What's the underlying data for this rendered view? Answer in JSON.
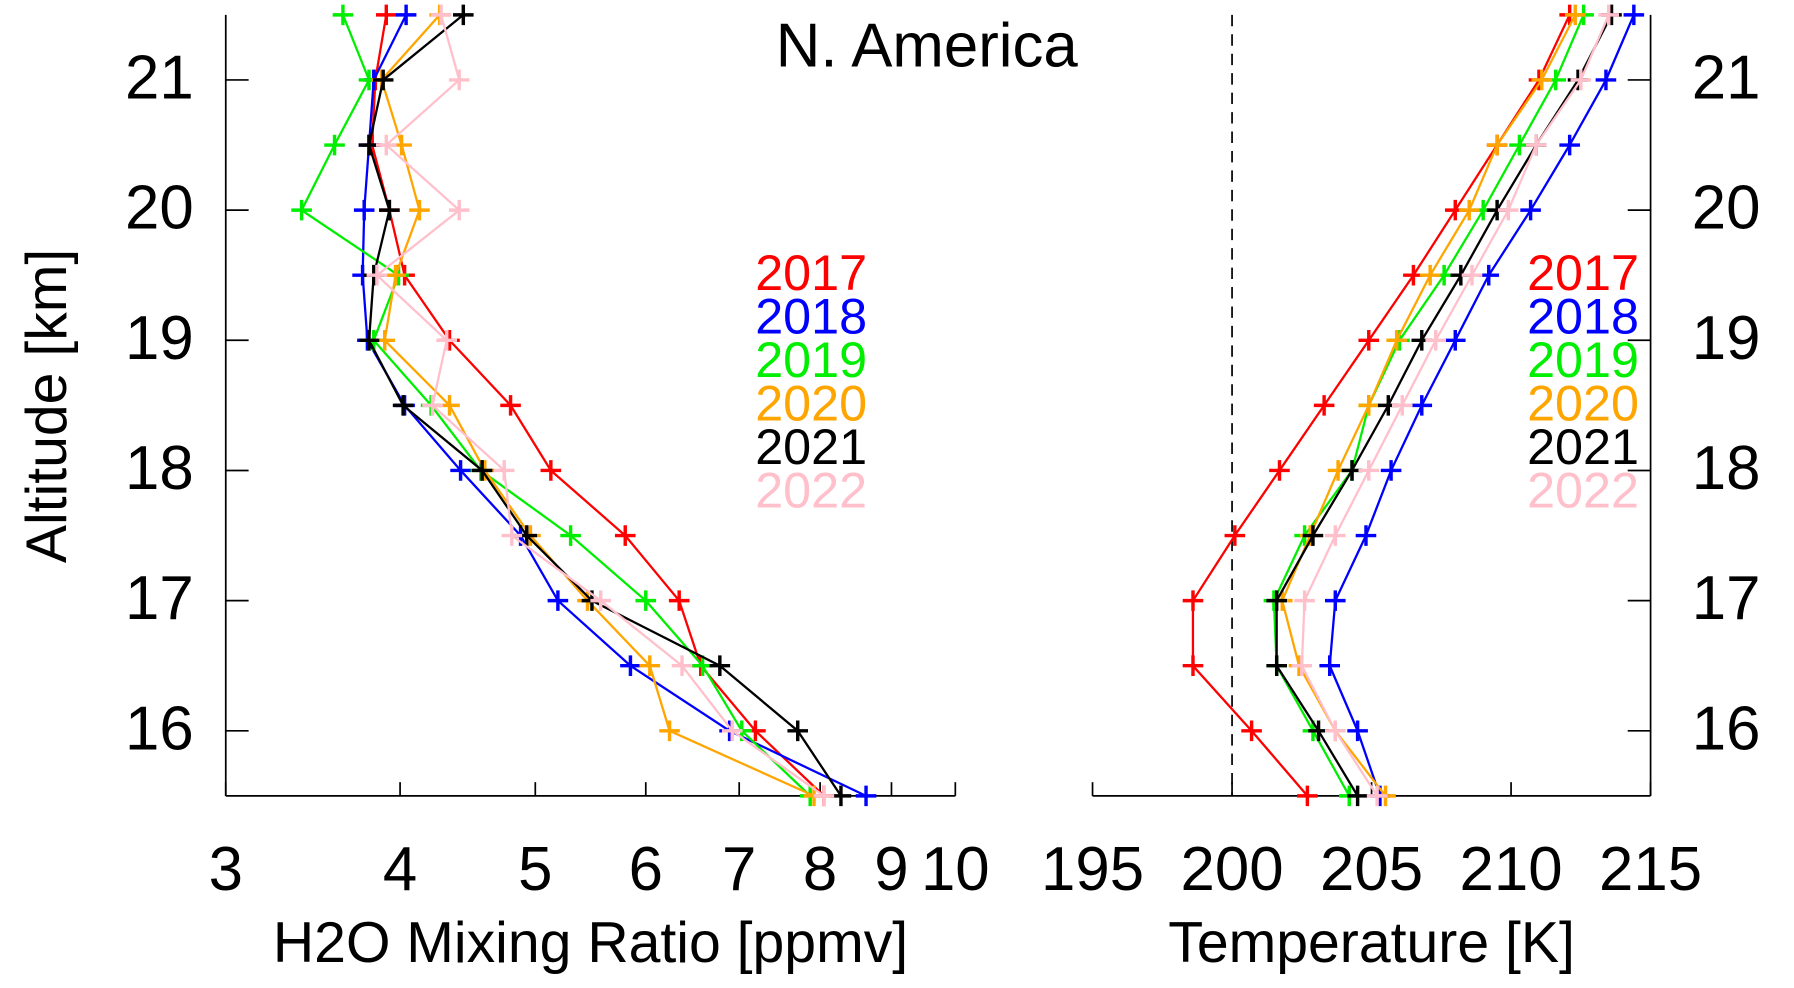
{
  "chart_data": [
    {
      "type": "line",
      "title": "N. America",
      "xlabel": "H2O Mixing Ratio [ppmv]",
      "ylabel": "Altitude [km]",
      "xscale": "log",
      "xlim": [
        3,
        10
      ],
      "xticks": [
        3,
        4,
        5,
        6,
        7,
        8,
        9,
        10
      ],
      "ylim": [
        15.5,
        21.5
      ],
      "yticks": [
        16,
        17,
        18,
        19,
        20,
        21
      ],
      "yaxis_side": "left",
      "y": [
        15.5,
        16,
        16.5,
        17,
        17.5,
        18,
        18.5,
        19,
        19.5,
        20,
        20.5,
        21,
        21.5
      ],
      "series": [
        {
          "name": "2017",
          "color": "#ff0000",
          "values": [
            8.05,
            7.19,
            6.57,
            6.34,
            5.8,
            5.13,
            4.8,
            4.34,
            4.03,
            3.93,
            3.82,
            3.84,
            3.91
          ]
        },
        {
          "name": "2018",
          "color": "#0000ff",
          "values": [
            8.63,
            6.89,
            5.85,
            5.19,
            4.88,
            4.42,
            4.03,
            3.79,
            3.76,
            3.77,
            3.8,
            3.83,
            4.04
          ]
        },
        {
          "name": "2019",
          "color": "#00ee00",
          "values": [
            7.87,
            7.03,
            6.59,
            6.0,
            5.3,
            4.57,
            4.21,
            3.83,
            3.99,
            3.4,
            3.59,
            3.8,
            3.64
          ]
        },
        {
          "name": "2020",
          "color": "#ffa500",
          "values": [
            7.92,
            6.24,
            6.04,
            5.45,
            4.96,
            4.6,
            4.34,
            3.9,
            3.97,
            4.13,
            4.01,
            3.88,
            4.27
          ]
        },
        {
          "name": "2021",
          "color": "#000000",
          "values": [
            8.28,
            7.71,
            6.78,
            5.49,
            4.93,
            4.58,
            4.02,
            3.8,
            3.83,
            3.93,
            3.8,
            3.89,
            4.44
          ]
        },
        {
          "name": "2022",
          "color": "#ffc0cb",
          "values": [
            8.05,
            6.92,
            6.37,
            5.57,
            4.81,
            4.75,
            4.22,
            4.32,
            3.85,
            4.41,
            3.91,
            4.41,
            4.28
          ]
        }
      ]
    },
    {
      "type": "line",
      "xlabel": "Temperature [K]",
      "xlim": [
        195,
        215
      ],
      "xticks": [
        195,
        200,
        205,
        210,
        215
      ],
      "ylim": [
        15.5,
        21.5
      ],
      "yticks": [
        16,
        17,
        18,
        19,
        20,
        21
      ],
      "yaxis_side": "right",
      "reference_line": 200,
      "y": [
        15.5,
        16,
        16.5,
        17,
        17.5,
        18,
        18.5,
        19,
        19.5,
        20,
        20.5,
        21,
        21.5
      ],
      "series": [
        {
          "name": "2017",
          "color": "#ff0000",
          "values": [
            202.7,
            200.7,
            198.6,
            198.6,
            200.1,
            201.7,
            203.3,
            204.9,
            206.5,
            208.0,
            209.5,
            211.0,
            212.1
          ]
        },
        {
          "name": "2018",
          "color": "#0000ff",
          "values": [
            205.3,
            204.5,
            203.5,
            203.7,
            204.8,
            205.7,
            206.8,
            208.0,
            209.2,
            210.7,
            212.1,
            213.4,
            214.4
          ]
        },
        {
          "name": "2019",
          "color": "#00ee00",
          "values": [
            204.2,
            202.9,
            201.6,
            201.5,
            202.6,
            204.3,
            204.9,
            206.0,
            207.6,
            209.0,
            210.3,
            211.6,
            212.6
          ]
        },
        {
          "name": "2020",
          "color": "#ffa500",
          "values": [
            205.5,
            203.7,
            202.4,
            201.8,
            202.8,
            203.8,
            204.9,
            205.9,
            207.1,
            208.5,
            209.5,
            211.1,
            212.3
          ]
        },
        {
          "name": "2021",
          "color": "#000000",
          "values": [
            204.5,
            203.1,
            201.6,
            201.6,
            202.9,
            204.3,
            205.6,
            206.8,
            208.2,
            209.5,
            210.9,
            212.4,
            213.6
          ]
        },
        {
          "name": "2022",
          "color": "#ffc0cb",
          "values": [
            205.2,
            203.7,
            202.5,
            202.6,
            203.7,
            204.9,
            206.1,
            207.3,
            208.6,
            209.9,
            210.9,
            212.5,
            213.5
          ]
        }
      ]
    }
  ]
}
